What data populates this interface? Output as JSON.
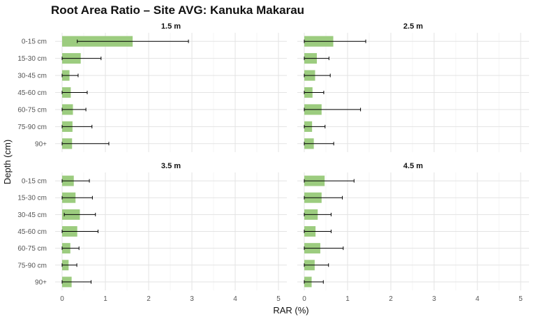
{
  "chart_data": {
    "type": "bar",
    "orientation": "horizontal",
    "title": "Root Area Ratio – Site AVG: Kanuka Makarau",
    "xlabel": "RAR (%)",
    "ylabel": "Depth (cm)",
    "categories": [
      "0-15 cm",
      "15-30 cm",
      "30-45 cm",
      "45-60 cm",
      "60-75 cm",
      "75-90 cm",
      "90+"
    ],
    "xlim": [
      0,
      5
    ],
    "x_ticks": [
      0,
      1,
      2,
      3,
      4,
      5
    ],
    "grid": true,
    "bar_color": "#9ccc7f",
    "error_bar_color": "#000000",
    "panels": [
      {
        "label": "1.5 m",
        "values": [
          1.63,
          0.43,
          0.17,
          0.2,
          0.25,
          0.24,
          0.23
        ],
        "error_low": [
          0.35,
          0.0,
          0.0,
          0.0,
          0.0,
          0.0,
          0.0
        ],
        "error_high": [
          2.92,
          0.9,
          0.37,
          0.58,
          0.55,
          0.69,
          1.08
        ]
      },
      {
        "label": "2.5 m",
        "values": [
          0.67,
          0.29,
          0.25,
          0.19,
          0.4,
          0.18,
          0.22
        ],
        "error_low": [
          0.0,
          0.0,
          0.0,
          0.0,
          0.0,
          0.0,
          0.0
        ],
        "error_high": [
          1.42,
          0.57,
          0.6,
          0.45,
          1.3,
          0.48,
          0.68
        ]
      },
      {
        "label": "3.5 m",
        "values": [
          0.27,
          0.31,
          0.41,
          0.35,
          0.19,
          0.15,
          0.22
        ],
        "error_low": [
          0.0,
          0.0,
          0.05,
          0.0,
          0.0,
          0.0,
          0.0
        ],
        "error_high": [
          0.63,
          0.7,
          0.77,
          0.83,
          0.39,
          0.34,
          0.67
        ]
      },
      {
        "label": "4.5 m",
        "values": [
          0.47,
          0.4,
          0.31,
          0.26,
          0.37,
          0.24,
          0.17
        ],
        "error_low": [
          0.0,
          0.0,
          0.0,
          0.0,
          0.0,
          0.0,
          0.0
        ],
        "error_high": [
          1.15,
          0.88,
          0.62,
          0.62,
          0.9,
          0.56,
          0.44
        ]
      }
    ]
  }
}
